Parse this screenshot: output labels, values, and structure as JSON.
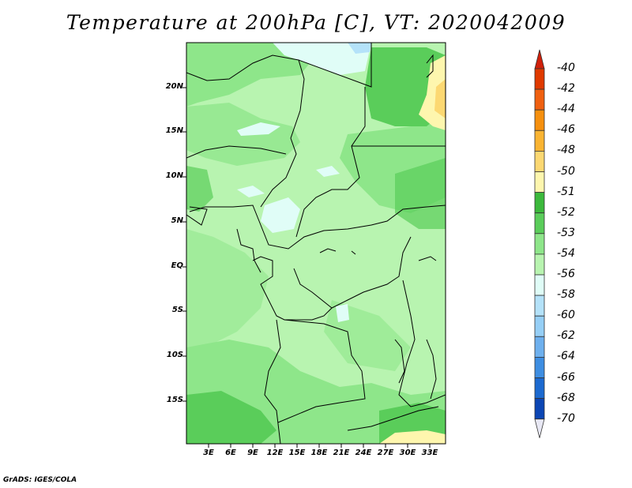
{
  "title": "Temperature at 200hPa [C], VT: 2020042009",
  "credit": "GrADS: IGES/COLA",
  "lat_labels": [
    "20N",
    "15N",
    "10N",
    "5N",
    "EQ",
    "5S",
    "10S",
    "15S"
  ],
  "lon_labels": [
    "3E",
    "6E",
    "9E",
    "12E",
    "15E",
    "18E",
    "21E",
    "24E",
    "27E",
    "30E",
    "33E"
  ],
  "colorbar": {
    "labels": [
      "-40",
      "-42",
      "-44",
      "-46",
      "-48",
      "-50",
      "-51",
      "-52",
      "-53",
      "-54",
      "-56",
      "-58",
      "-60",
      "-62",
      "-64",
      "-66",
      "-68",
      "-70"
    ],
    "colors": [
      "#e03a00",
      "#f06010",
      "#f6900e",
      "#fab432",
      "#fcd872",
      "#fef6ae",
      "#3cb93c",
      "#5acd5a",
      "#8ee68a",
      "#b8f4b0",
      "#e0fdf7",
      "#b4e2f9",
      "#96cff6",
      "#6eb0ee",
      "#3e8ee2",
      "#1c6ad0",
      "#0c46b4",
      "#082078"
    ]
  },
  "palette": {
    "land_base": "#b8f4b0",
    "mid": "#8ee68a",
    "dark": "#5acd5a",
    "darkest": "#3cb93c",
    "cool": "#e0fdf7",
    "coolest": "#b4e2f9",
    "warm": "#fef6ae",
    "warmer": "#fcd872",
    "warmest": "#fab432"
  }
}
